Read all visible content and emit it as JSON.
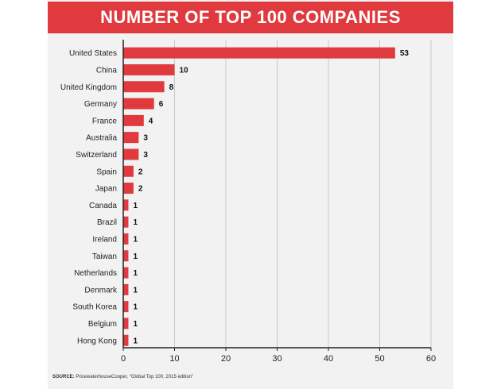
{
  "title": "NUMBER OF TOP 100 COMPANIES",
  "source": {
    "label": "SOURCE:",
    "text": "PricewaterhouseCooper, \"Global Top 100, 2015 edition\""
  },
  "colors": {
    "accent": "#e03a3e",
    "bar": "#e03a3e",
    "panel": "#f2f2f2",
    "grid": "#c8c8c8"
  },
  "chart_data": {
    "type": "bar",
    "orientation": "horizontal",
    "title": "NUMBER OF TOP 100 COMPANIES",
    "categories": [
      "United States",
      "China",
      "United Kingdom",
      "Germany",
      "France",
      "Australia",
      "Switzerland",
      "Spain",
      "Japan",
      "Canada",
      "Brazil",
      "Ireland",
      "Taiwan",
      "Netherlands",
      "Denmark",
      "South Korea",
      "Belgium",
      "Hong Kong"
    ],
    "values": [
      53,
      10,
      8,
      6,
      4,
      3,
      3,
      2,
      2,
      1,
      1,
      1,
      1,
      1,
      1,
      1,
      1,
      1
    ],
    "xlim": [
      0,
      60
    ],
    "xticks": [
      0,
      10,
      20,
      30,
      40,
      50,
      60
    ],
    "grid": true,
    "data_labels": true,
    "legend": false
  }
}
